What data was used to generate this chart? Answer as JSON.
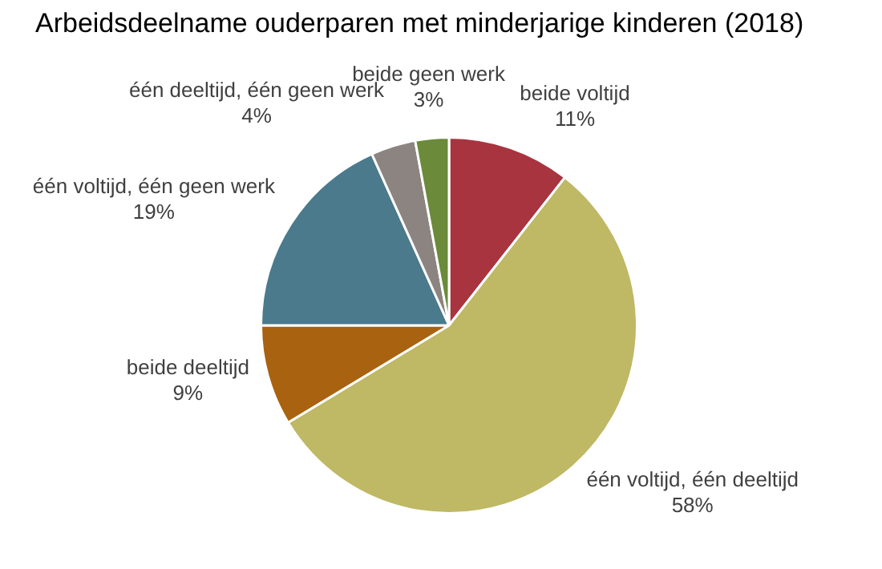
{
  "chart_data": {
    "type": "pie",
    "title": "Arbeidsdeelname ouderparen met minderjarige kinderen (2018)",
    "categories": [
      "beide voltijd",
      "één voltijd, één deeltijd",
      "beide deeltijd",
      "één voltijd, één geen werk",
      "één deeltijd, één geen werk",
      "beide geen werk"
    ],
    "values": [
      11,
      58,
      9,
      19,
      4,
      3
    ],
    "value_labels": [
      "11%",
      "58%",
      "9%",
      "19%",
      "4%",
      "3%"
    ],
    "colors": [
      "#a8343f",
      "#bfb865",
      "#a9620f",
      "#4a7a8c",
      "#8c8480",
      "#6b8a3a"
    ],
    "legend": false
  }
}
